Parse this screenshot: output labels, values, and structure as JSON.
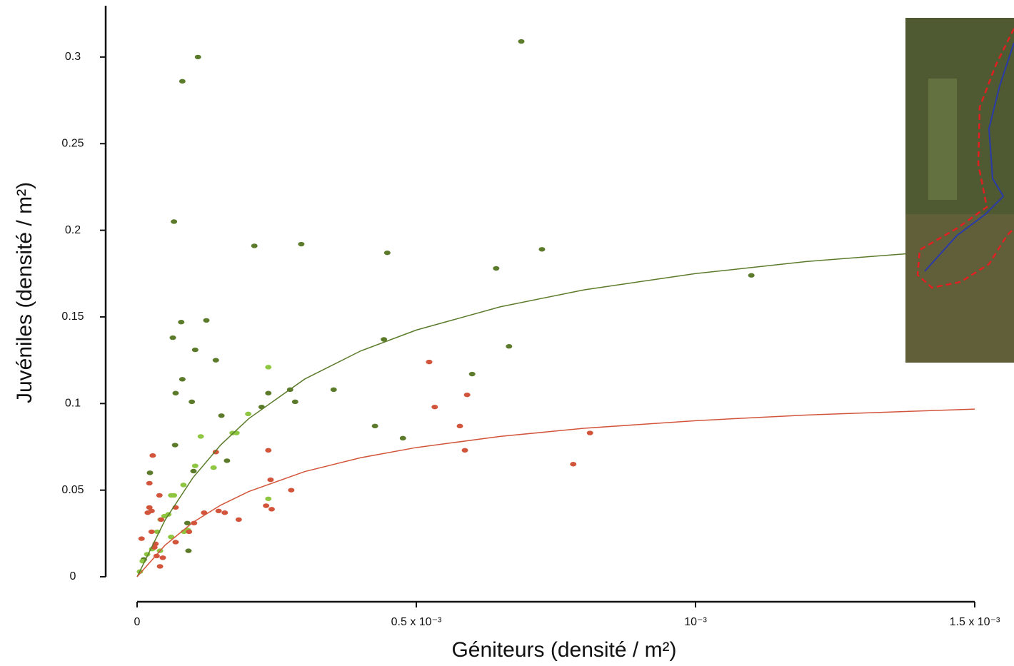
{
  "chart_data": {
    "type": "scatter",
    "xlabel": "Géniteurs (densité / m²)",
    "ylabel": "Juvéniles (densité / m²)",
    "xlim": [
      0,
      0.0015
    ],
    "ylim": [
      0,
      0.33
    ],
    "xticks": [
      0,
      {
        "value": 0.0005,
        "label": "0.5 x 10⁻³"
      },
      {
        "value": 0.001,
        "label": "10⁻³"
      },
      {
        "value": 0.0015,
        "label": "1.5 x 10⁻³"
      }
    ],
    "yticks": [
      0,
      0.05,
      0.1,
      0.15,
      0.2,
      0.25,
      0.3
    ],
    "series": [
      {
        "mode": "markers",
        "color": "#5b7b2b",
        "x": [
          0.000109,
          8.1e-05,
          0.000688,
          6.6e-05,
          0.00021,
          0.000294,
          0.000448,
          0.000725,
          0.000643,
          0.0011,
          7.9e-05,
          0.000124,
          6.4e-05,
          0.000442,
          0.000104,
          0.000666,
          0.000141,
          8.1e-05,
          0.0006,
          6.9e-05,
          0.000235,
          9.8e-05,
          0.000274,
          0.000283,
          0.000352,
          0.000223,
          0.000151,
          0.000426,
          0.000476,
          6.8e-05,
          0.000161,
          2.3e-05,
          0.000101,
          9e-05,
          9.2e-05,
          1.2e-05
        ],
        "values": [
          0.3,
          0.286,
          0.309,
          0.205,
          0.191,
          0.192,
          0.187,
          0.189,
          0.178,
          0.174,
          0.147,
          0.148,
          0.138,
          0.137,
          0.131,
          0.133,
          0.125,
          0.114,
          0.117,
          0.106,
          0.106,
          0.101,
          0.108,
          0.101,
          0.108,
          0.098,
          0.093,
          0.087,
          0.08,
          0.076,
          0.067,
          0.06,
          0.061,
          0.031,
          0.015,
          0.01
        ]
      },
      {
        "mode": "markers",
        "color": "#8fc641",
        "x": [
          0.000235,
          0.000199,
          0.000171,
          0.000178,
          0.000114,
          0.000104,
          0.000137,
          8.3e-05,
          6.6e-05,
          6.1e-05,
          5.6e-05,
          4.9e-05,
          4.2e-05,
          3.6e-05,
          6.1e-05,
          8.4e-05,
          9.1e-05,
          0.000235,
          2.7e-05,
          1.8e-05,
          1e-05,
          5e-06,
          4.1e-05
        ],
        "values": [
          0.121,
          0.094,
          0.083,
          0.083,
          0.081,
          0.064,
          0.063,
          0.053,
          0.047,
          0.047,
          0.036,
          0.035,
          0.033,
          0.026,
          0.023,
          0.026,
          0.027,
          0.045,
          0.016,
          0.013,
          0.009,
          0.003,
          0.015
        ]
      },
      {
        "mode": "markers",
        "color": "#d2553b",
        "x": [
          0.000523,
          0.000533,
          0.000591,
          0.000578,
          0.000587,
          0.000811,
          0.000781,
          0.000141,
          0.000235,
          2.8e-05,
          2.2e-05,
          4e-05,
          0.000239,
          0.000276,
          2.2e-05,
          2.6e-05,
          1.9e-05,
          6.9e-05,
          0.000231,
          0.000241,
          0.00012,
          0.000146,
          0.000157,
          0.000182,
          4.3e-05,
          2.6e-05,
          3.3e-05,
          3.1e-05,
          6.9e-05,
          0.000102,
          9.3e-05,
          8e-06,
          3.5e-05,
          4.1e-05,
          4.6e-05
        ],
        "values": [
          0.124,
          0.098,
          0.105,
          0.087,
          0.073,
          0.083,
          0.065,
          0.072,
          0.073,
          0.07,
          0.054,
          0.047,
          0.056,
          0.05,
          0.04,
          0.038,
          0.037,
          0.04,
          0.041,
          0.039,
          0.037,
          0.038,
          0.037,
          0.033,
          0.033,
          0.026,
          0.019,
          0.017,
          0.02,
          0.031,
          0.026,
          0.022,
          0.012,
          0.006,
          0.011
        ]
      },
      {
        "mode": "line",
        "color": "#5b7b2b",
        "x": [
          0,
          5e-05,
          0.0001,
          0.00015,
          0.0002,
          0.0003,
          0.0004,
          0.0005,
          0.00065,
          0.0008,
          0.001,
          0.0012,
          0.0015
        ],
        "values": [
          0,
          0.0327,
          0.0572,
          0.0762,
          0.0913,
          0.1141,
          0.1303,
          0.1424,
          0.1558,
          0.1656,
          0.175,
          0.182,
          0.1895
        ]
      },
      {
        "mode": "line",
        "color": "#d2553b",
        "x": [
          0,
          5e-05,
          0.0001,
          0.00015,
          0.0002,
          0.0003,
          0.0004,
          0.0005,
          0.00065,
          0.0008,
          0.001,
          0.0012,
          0.0015
        ],
        "values": [
          0,
          0.0182,
          0.0314,
          0.0414,
          0.0492,
          0.0607,
          0.0687,
          0.0746,
          0.081,
          0.0857,
          0.0901,
          0.0934,
          0.0968
        ]
      }
    ]
  }
}
